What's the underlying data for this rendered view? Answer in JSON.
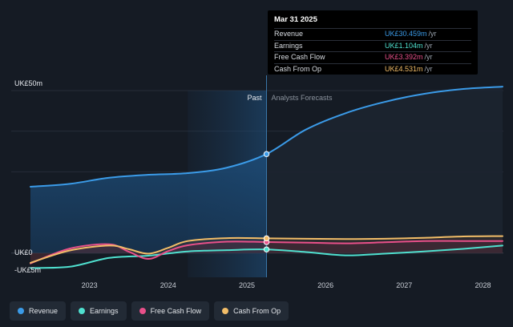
{
  "chart_data": {
    "type": "area",
    "x_ticks": [
      "2023",
      "2024",
      "2025",
      "2026",
      "2027",
      "2028"
    ],
    "y_tick_labels": [
      "UK£50m",
      "UK£0",
      "-UK£5m"
    ],
    "ylim": [
      -5,
      50
    ],
    "split_labels": {
      "past": "Past",
      "forecast": "Analysts Forecasts"
    },
    "highlight_date": 2025.25,
    "series": [
      {
        "name": "Revenue",
        "color": "#3b9be8",
        "points": [
          [
            2022.25,
            20.4
          ],
          [
            2022.75,
            21.3
          ],
          [
            2023.25,
            23.2
          ],
          [
            2023.75,
            24.1
          ],
          [
            2024.25,
            24.6
          ],
          [
            2024.75,
            26.3
          ],
          [
            2025.25,
            30.459
          ],
          [
            2025.75,
            38
          ],
          [
            2026.25,
            43
          ],
          [
            2026.75,
            46.5
          ],
          [
            2027.25,
            49
          ],
          [
            2027.75,
            50.5
          ],
          [
            2028.25,
            51.2
          ]
        ]
      },
      {
        "name": "Earnings",
        "color": "#4fe0cf",
        "points": [
          [
            2022.25,
            -4.6
          ],
          [
            2022.75,
            -4.2
          ],
          [
            2023.25,
            -1.5
          ],
          [
            2023.75,
            -0.8
          ],
          [
            2024.25,
            0.5
          ],
          [
            2024.75,
            0.9
          ],
          [
            2025.25,
            1.104
          ],
          [
            2025.75,
            0.3
          ],
          [
            2026.25,
            -0.7
          ],
          [
            2026.75,
            -0.2
          ],
          [
            2027.25,
            0.5
          ],
          [
            2027.75,
            1.3
          ],
          [
            2028.25,
            2.3
          ]
        ]
      },
      {
        "name": "Free Cash Flow",
        "color": "#e8508a",
        "points": [
          [
            2022.25,
            -3.2
          ],
          [
            2022.75,
            1.4
          ],
          [
            2023.25,
            2.7
          ],
          [
            2023.5,
            0.4
          ],
          [
            2023.75,
            -1.8
          ],
          [
            2024.0,
            0.6
          ],
          [
            2024.25,
            2.4
          ],
          [
            2024.75,
            3.5
          ],
          [
            2025.25,
            3.392
          ],
          [
            2025.75,
            3.2
          ],
          [
            2026.25,
            3.0
          ],
          [
            2026.75,
            3.3
          ],
          [
            2027.25,
            3.7
          ],
          [
            2027.75,
            3.7
          ],
          [
            2028.25,
            3.7
          ]
        ]
      },
      {
        "name": "Cash From Op",
        "color": "#f2bd68",
        "points": [
          [
            2022.25,
            -3.0
          ],
          [
            2022.75,
            0.8
          ],
          [
            2023.25,
            2.3
          ],
          [
            2023.5,
            1.2
          ],
          [
            2023.75,
            -0.2
          ],
          [
            2024.0,
            1.6
          ],
          [
            2024.25,
            3.7
          ],
          [
            2024.75,
            4.6
          ],
          [
            2025.25,
            4.531
          ],
          [
            2025.75,
            4.4
          ],
          [
            2026.25,
            4.3
          ],
          [
            2026.75,
            4.4
          ],
          [
            2027.25,
            4.7
          ],
          [
            2027.75,
            5.1
          ],
          [
            2028.25,
            5.2
          ]
        ]
      }
    ]
  },
  "tooltip": {
    "date": "Mar 31 2025",
    "rows": [
      {
        "label": "Revenue",
        "value": "UK£30.459m",
        "unit": "/yr",
        "color": "#3b9be8"
      },
      {
        "label": "Earnings",
        "value": "UK£1.104m",
        "unit": "/yr",
        "color": "#4fe0cf"
      },
      {
        "label": "Free Cash Flow",
        "value": "UK£3.392m",
        "unit": "/yr",
        "color": "#e8508a"
      },
      {
        "label": "Cash From Op",
        "value": "UK£4.531m",
        "unit": "/yr",
        "color": "#f2bd68"
      }
    ]
  },
  "legend": [
    {
      "label": "Revenue",
      "color": "#3b9be8"
    },
    {
      "label": "Earnings",
      "color": "#4fe0cf"
    },
    {
      "label": "Free Cash Flow",
      "color": "#e8508a"
    },
    {
      "label": "Cash From Op",
      "color": "#f2bd68"
    }
  ]
}
